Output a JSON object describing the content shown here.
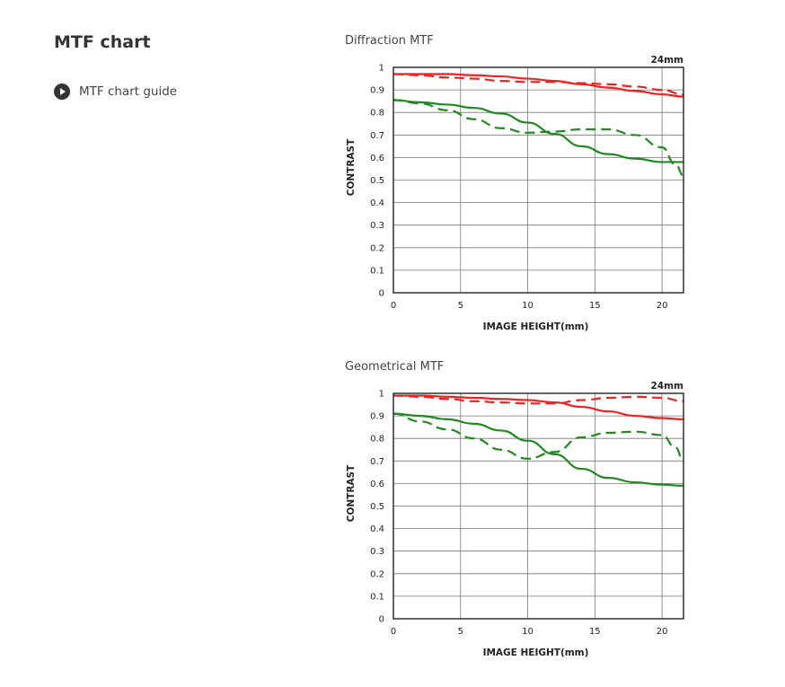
{
  "page": {
    "title": "MTF chart",
    "guide_link": "MTF chart guide"
  },
  "colors": {
    "sagittal_red": "#ee2222",
    "sagittal_green": "#1f8a1f",
    "grid": "#777777"
  },
  "icons": {
    "guide": "play-circle-icon"
  },
  "chart_data": [
    {
      "type": "line",
      "title": "Diffraction MTF",
      "focal_length": "24mm",
      "xlabel": "IMAGE HEIGHT(mm)",
      "ylabel": "CONTRAST",
      "xlim": [
        0,
        21.6
      ],
      "ylim": [
        0,
        1
      ],
      "xticks": [
        "0",
        "5",
        "10",
        "15",
        "20"
      ],
      "yticks": [
        "0",
        "0.1",
        "0.2",
        "0.3",
        "0.4",
        "0.5",
        "0.6",
        "0.7",
        "0.8",
        "0.9",
        "1"
      ],
      "grid": true,
      "series": [
        {
          "color": "#ee2222",
          "style": "solid",
          "x": [
            0,
            2,
            4,
            6,
            8,
            10,
            12,
            14,
            16,
            18,
            20,
            21.6
          ],
          "y": [
            0.97,
            0.97,
            0.97,
            0.965,
            0.96,
            0.95,
            0.94,
            0.925,
            0.91,
            0.895,
            0.88,
            0.87
          ]
        },
        {
          "color": "#ee2222",
          "style": "dashed",
          "x": [
            0,
            2,
            4,
            6,
            8,
            10,
            12,
            14,
            16,
            18,
            20,
            21.6
          ],
          "y": [
            0.97,
            0.965,
            0.955,
            0.95,
            0.94,
            0.935,
            0.935,
            0.93,
            0.925,
            0.915,
            0.9,
            0.88
          ]
        },
        {
          "color": "#1f8a1f",
          "style": "solid",
          "x": [
            0,
            2,
            4,
            6,
            8,
            10,
            12,
            14,
            16,
            18,
            20,
            21.6
          ],
          "y": [
            0.855,
            0.845,
            0.835,
            0.82,
            0.795,
            0.755,
            0.705,
            0.65,
            0.615,
            0.595,
            0.58,
            0.58
          ]
        },
        {
          "color": "#1f8a1f",
          "style": "dashed",
          "x": [
            0,
            2,
            4,
            6,
            8,
            10,
            12,
            14,
            16,
            18,
            20,
            21,
            21.6
          ],
          "y": [
            0.855,
            0.84,
            0.81,
            0.77,
            0.73,
            0.71,
            0.715,
            0.725,
            0.725,
            0.7,
            0.645,
            0.57,
            0.52
          ]
        }
      ]
    },
    {
      "type": "line",
      "title": "Geometrical MTF",
      "focal_length": "24mm",
      "xlabel": "IMAGE HEIGHT(mm)",
      "ylabel": "CONTRAST",
      "xlim": [
        0,
        21.6
      ],
      "ylim": [
        0,
        1
      ],
      "xticks": [
        "0",
        "5",
        "10",
        "15",
        "20"
      ],
      "yticks": [
        "0",
        "0.1",
        "0.2",
        "0.3",
        "0.4",
        "0.5",
        "0.6",
        "0.7",
        "0.8",
        "0.9",
        "1"
      ],
      "grid": true,
      "series": [
        {
          "color": "#ee2222",
          "style": "solid",
          "x": [
            0,
            2,
            4,
            6,
            8,
            10,
            12,
            14,
            16,
            18,
            20,
            21.6
          ],
          "y": [
            0.99,
            0.99,
            0.985,
            0.98,
            0.975,
            0.97,
            0.96,
            0.94,
            0.92,
            0.9,
            0.89,
            0.885
          ]
        },
        {
          "color": "#ee2222",
          "style": "dashed",
          "x": [
            0,
            2,
            4,
            6,
            8,
            10,
            12,
            14,
            16,
            18,
            20,
            21.6
          ],
          "y": [
            0.99,
            0.985,
            0.975,
            0.965,
            0.96,
            0.955,
            0.955,
            0.97,
            0.98,
            0.985,
            0.98,
            0.965
          ]
        },
        {
          "color": "#1f8a1f",
          "style": "solid",
          "x": [
            0,
            2,
            4,
            6,
            8,
            10,
            12,
            14,
            16,
            18,
            20,
            21.6
          ],
          "y": [
            0.91,
            0.9,
            0.885,
            0.865,
            0.835,
            0.79,
            0.73,
            0.665,
            0.625,
            0.605,
            0.595,
            0.59
          ]
        },
        {
          "color": "#1f8a1f",
          "style": "dashed",
          "x": [
            0,
            2,
            4,
            6,
            8,
            10,
            12,
            14,
            16,
            18,
            20,
            21,
            21.6
          ],
          "y": [
            0.91,
            0.875,
            0.84,
            0.8,
            0.75,
            0.71,
            0.74,
            0.805,
            0.825,
            0.83,
            0.815,
            0.76,
            0.7
          ]
        }
      ]
    }
  ]
}
